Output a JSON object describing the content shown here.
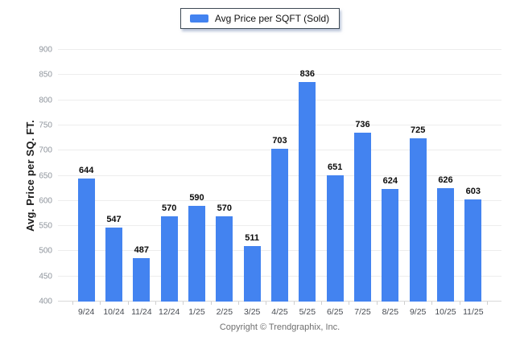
{
  "chart_data": {
    "type": "bar",
    "legend": "Avg Price per SQFT (Sold)",
    "categories": [
      "9/24",
      "10/24",
      "11/24",
      "12/24",
      "1/25",
      "2/25",
      "3/25",
      "4/25",
      "5/25",
      "6/25",
      "7/25",
      "8/25",
      "9/25",
      "10/25",
      "11/25"
    ],
    "values": [
      644,
      547,
      487,
      570,
      590,
      570,
      511,
      703,
      836,
      651,
      736,
      624,
      725,
      626,
      603
    ],
    "ylabel": "Avg. Price per SQ. FT.",
    "ylim": [
      400,
      900
    ],
    "yticks": [
      400,
      450,
      500,
      550,
      600,
      650,
      700,
      750,
      800,
      850,
      900
    ],
    "grid": true,
    "legend_position": "top-center",
    "bar_color": "#4383F0"
  },
  "footer": {
    "copyright": "Copyright © Trendgraphix, Inc."
  },
  "colors": {
    "bar": "#4383F0",
    "gridline": "#ededed",
    "baseline": "#d9d9d9",
    "y_tick_text": "#8e949c",
    "x_tick_text": "#474b52",
    "value_text": "#0b0b0b",
    "background": "#ffffff"
  }
}
